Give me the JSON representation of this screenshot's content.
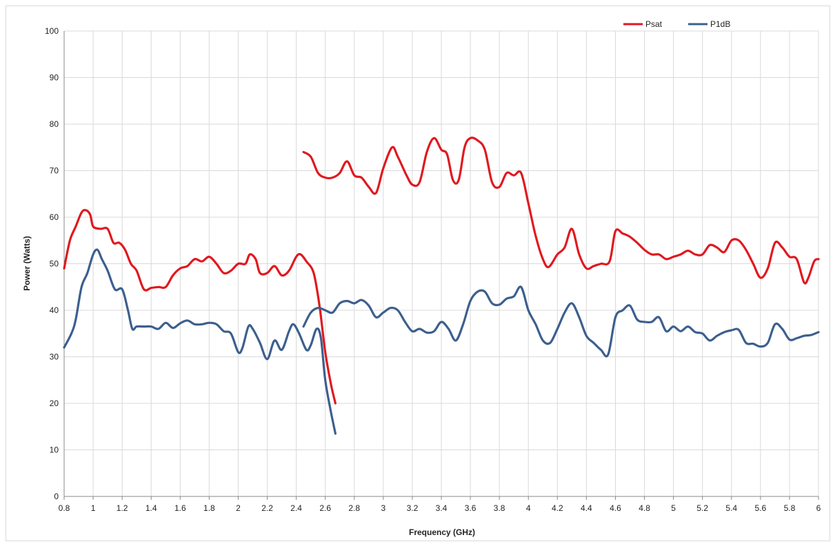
{
  "chart_data": {
    "type": "line",
    "title": "",
    "xlabel": "Frequency (GHz)",
    "ylabel": "Power (Watts)",
    "xlim": [
      0.8,
      6.0
    ],
    "ylim": [
      0,
      100
    ],
    "grid": true,
    "legend_placement": "top-right",
    "x_ticks": [
      "0.8",
      "1",
      "1.2",
      "1.4",
      "1.6",
      "1.8",
      "2",
      "2.2",
      "2.4",
      "2.6",
      "2.8",
      "3",
      "3.2",
      "3.4",
      "3.6",
      "3.8",
      "4",
      "4.2",
      "4.4",
      "4.6",
      "4.8",
      "5",
      "5.2",
      "5.4",
      "5.6",
      "5.8",
      "6"
    ],
    "y_ticks": [
      "0",
      "10",
      "20",
      "30",
      "40",
      "50",
      "60",
      "70",
      "80",
      "90",
      "100"
    ],
    "series": [
      {
        "name": "Psat",
        "color": "#e0191f",
        "segments": [
          [
            [
              0.8,
              49
            ],
            [
              0.84,
              55
            ],
            [
              0.88,
              58
            ],
            [
              0.92,
              61
            ],
            [
              0.95,
              61.5
            ],
            [
              0.98,
              60.5
            ],
            [
              1.0,
              58
            ],
            [
              1.05,
              57.5
            ],
            [
              1.1,
              57.5
            ],
            [
              1.14,
              54.5
            ],
            [
              1.18,
              54.5
            ],
            [
              1.22,
              53
            ],
            [
              1.26,
              50
            ],
            [
              1.3,
              48.5
            ],
            [
              1.35,
              44.5
            ],
            [
              1.4,
              44.8
            ],
            [
              1.45,
              45
            ],
            [
              1.5,
              45
            ],
            [
              1.55,
              47.5
            ],
            [
              1.6,
              49
            ],
            [
              1.65,
              49.5
            ],
            [
              1.7,
              51
            ],
            [
              1.75,
              50.5
            ],
            [
              1.8,
              51.5
            ],
            [
              1.85,
              50
            ],
            [
              1.9,
              48
            ],
            [
              1.95,
              48.5
            ],
            [
              2.0,
              50
            ],
            [
              2.05,
              50
            ],
            [
              2.08,
              52
            ],
            [
              2.12,
              51
            ],
            [
              2.15,
              48
            ],
            [
              2.2,
              48
            ],
            [
              2.25,
              49.5
            ],
            [
              2.3,
              47.5
            ],
            [
              2.35,
              48.5
            ],
            [
              2.4,
              51.5
            ],
            [
              2.43,
              52
            ],
            [
              2.47,
              50.5
            ],
            [
              2.52,
              48
            ],
            [
              2.56,
              41
            ],
            [
              2.6,
              31
            ],
            [
              2.64,
              24
            ],
            [
              2.67,
              20
            ]
          ],
          [
            [
              2.45,
              74
            ],
            [
              2.5,
              73
            ],
            [
              2.55,
              69.5
            ],
            [
              2.6,
              68.5
            ],
            [
              2.65,
              68.5
            ],
            [
              2.7,
              69.5
            ],
            [
              2.75,
              72
            ],
            [
              2.8,
              69
            ],
            [
              2.85,
              68.5
            ],
            [
              2.9,
              66.5
            ],
            [
              2.95,
              65.2
            ],
            [
              3.0,
              70.5
            ],
            [
              3.06,
              75
            ],
            [
              3.1,
              73
            ],
            [
              3.16,
              69
            ],
            [
              3.2,
              67
            ],
            [
              3.25,
              67.5
            ],
            [
              3.3,
              74
            ],
            [
              3.35,
              77
            ],
            [
              3.4,
              74.5
            ],
            [
              3.44,
              73.5
            ],
            [
              3.48,
              68
            ],
            [
              3.52,
              68
            ],
            [
              3.56,
              75
            ],
            [
              3.6,
              77
            ],
            [
              3.65,
              76.5
            ],
            [
              3.7,
              74.5
            ],
            [
              3.75,
              67.5
            ],
            [
              3.8,
              66.5
            ],
            [
              3.85,
              69.5
            ],
            [
              3.9,
              69
            ],
            [
              3.95,
              69.5
            ],
            [
              4.0,
              63
            ],
            [
              4.05,
              56
            ],
            [
              4.1,
              51
            ],
            [
              4.14,
              49.3
            ],
            [
              4.2,
              52
            ],
            [
              4.25,
              53.5
            ],
            [
              4.3,
              57.5
            ],
            [
              4.35,
              52
            ],
            [
              4.4,
              49
            ],
            [
              4.45,
              49.5
            ],
            [
              4.5,
              50
            ],
            [
              4.56,
              50.5
            ],
            [
              4.6,
              57
            ],
            [
              4.65,
              56.5
            ],
            [
              4.7,
              55.8
            ],
            [
              4.75,
              54.5
            ],
            [
              4.8,
              53
            ],
            [
              4.85,
              52
            ],
            [
              4.9,
              52
            ],
            [
              4.95,
              51
            ],
            [
              5.0,
              51.5
            ],
            [
              5.05,
              52
            ],
            [
              5.1,
              52.8
            ],
            [
              5.15,
              52
            ],
            [
              5.2,
              52
            ],
            [
              5.25,
              54
            ],
            [
              5.3,
              53.5
            ],
            [
              5.35,
              52.5
            ],
            [
              5.4,
              55
            ],
            [
              5.45,
              55
            ],
            [
              5.5,
              53
            ],
            [
              5.55,
              50
            ],
            [
              5.6,
              47
            ],
            [
              5.65,
              49
            ],
            [
              5.7,
              54.5
            ],
            [
              5.75,
              53.5
            ],
            [
              5.8,
              51.5
            ],
            [
              5.85,
              51
            ],
            [
              5.9,
              46
            ],
            [
              5.93,
              47
            ],
            [
              5.97,
              50.5
            ],
            [
              6.0,
              51
            ]
          ]
        ]
      },
      {
        "name": "P1dB",
        "color": "#3c5f8e",
        "segments": [
          [
            [
              0.8,
              32
            ],
            [
              0.85,
              35
            ],
            [
              0.88,
              38
            ],
            [
              0.92,
              45
            ],
            [
              0.96,
              48
            ],
            [
              1.0,
              52
            ],
            [
              1.03,
              53
            ],
            [
              1.06,
              51
            ],
            [
              1.1,
              48.5
            ],
            [
              1.15,
              44.5
            ],
            [
              1.2,
              44.5
            ],
            [
              1.24,
              40
            ],
            [
              1.27,
              36
            ],
            [
              1.3,
              36.5
            ],
            [
              1.35,
              36.5
            ],
            [
              1.4,
              36.5
            ],
            [
              1.45,
              36
            ],
            [
              1.5,
              37.3
            ],
            [
              1.55,
              36.2
            ],
            [
              1.6,
              37.2
            ],
            [
              1.65,
              37.8
            ],
            [
              1.7,
              37
            ],
            [
              1.75,
              37
            ],
            [
              1.8,
              37.3
            ],
            [
              1.85,
              37
            ],
            [
              1.9,
              35.5
            ],
            [
              1.95,
              35
            ],
            [
              2.0,
              31
            ],
            [
              2.03,
              32
            ],
            [
              2.07,
              36.5
            ],
            [
              2.1,
              36
            ],
            [
              2.15,
              33
            ],
            [
              2.2,
              29.5
            ],
            [
              2.25,
              33.5
            ],
            [
              2.3,
              31.5
            ],
            [
              2.35,
              35.5
            ],
            [
              2.38,
              37
            ],
            [
              2.42,
              35
            ],
            [
              2.47,
              31.5
            ],
            [
              2.5,
              32.5
            ],
            [
              2.54,
              36
            ],
            [
              2.57,
              34
            ],
            [
              2.6,
              25
            ],
            [
              2.64,
              18
            ],
            [
              2.67,
              13.5
            ]
          ],
          [
            [
              2.45,
              36.5
            ],
            [
              2.5,
              39.5
            ],
            [
              2.55,
              40.5
            ],
            [
              2.6,
              40
            ],
            [
              2.65,
              39.5
            ],
            [
              2.7,
              41.5
            ],
            [
              2.75,
              42
            ],
            [
              2.8,
              41.5
            ],
            [
              2.85,
              42.2
            ],
            [
              2.9,
              41
            ],
            [
              2.95,
              38.5
            ],
            [
              3.0,
              39.5
            ],
            [
              3.05,
              40.5
            ],
            [
              3.1,
              40
            ],
            [
              3.15,
              37.5
            ],
            [
              3.2,
              35.5
            ],
            [
              3.25,
              36
            ],
            [
              3.3,
              35.2
            ],
            [
              3.35,
              35.5
            ],
            [
              3.4,
              37.5
            ],
            [
              3.45,
              36
            ],
            [
              3.5,
              33.5
            ],
            [
              3.55,
              37
            ],
            [
              3.6,
              42
            ],
            [
              3.65,
              44
            ],
            [
              3.7,
              44
            ],
            [
              3.75,
              41.5
            ],
            [
              3.8,
              41.2
            ],
            [
              3.85,
              42.5
            ],
            [
              3.9,
              43
            ],
            [
              3.95,
              45
            ],
            [
              4.0,
              40
            ],
            [
              4.05,
              37
            ],
            [
              4.1,
              33.5
            ],
            [
              4.15,
              33
            ],
            [
              4.2,
              36
            ],
            [
              4.25,
              39.5
            ],
            [
              4.3,
              41.5
            ],
            [
              4.35,
              38.5
            ],
            [
              4.4,
              34.5
            ],
            [
              4.45,
              33
            ],
            [
              4.5,
              31.5
            ],
            [
              4.55,
              30.5
            ],
            [
              4.6,
              38.5
            ],
            [
              4.65,
              40
            ],
            [
              4.7,
              41
            ],
            [
              4.75,
              38
            ],
            [
              4.8,
              37.5
            ],
            [
              4.85,
              37.5
            ],
            [
              4.9,
              38.5
            ],
            [
              4.95,
              35.5
            ],
            [
              5.0,
              36.5
            ],
            [
              5.05,
              35.5
            ],
            [
              5.1,
              36.5
            ],
            [
              5.15,
              35.3
            ],
            [
              5.2,
              35
            ],
            [
              5.25,
              33.5
            ],
            [
              5.3,
              34.5
            ],
            [
              5.35,
              35.3
            ],
            [
              5.4,
              35.7
            ],
            [
              5.45,
              35.8
            ],
            [
              5.5,
              33
            ],
            [
              5.55,
              32.8
            ],
            [
              5.6,
              32.2
            ],
            [
              5.65,
              33
            ],
            [
              5.7,
              37
            ],
            [
              5.75,
              36
            ],
            [
              5.8,
              33.7
            ],
            [
              5.85,
              34
            ],
            [
              5.9,
              34.5
            ],
            [
              5.95,
              34.7
            ],
            [
              6.0,
              35.3
            ]
          ]
        ]
      }
    ]
  }
}
